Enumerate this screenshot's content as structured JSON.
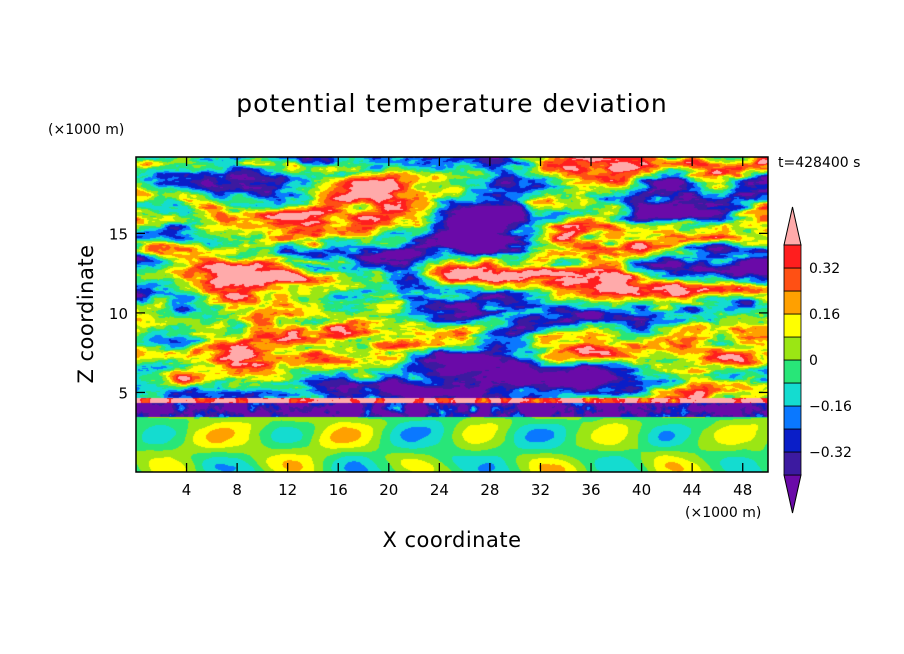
{
  "chart_data": {
    "type": "heatmap",
    "title": "potential temperature deviation",
    "xlabel": "X coordinate",
    "ylabel": "Z coordinate",
    "x_unit": "(×1000 m)",
    "y_unit": "(×1000 m)",
    "time_label": "t=428400 s",
    "xlim": [
      0,
      50
    ],
    "ylim": [
      0,
      19.8
    ],
    "x_ticks": [
      4,
      8,
      12,
      16,
      20,
      24,
      28,
      32,
      36,
      40,
      44,
      48
    ],
    "y_ticks": [
      5,
      10,
      15
    ],
    "colorbar": {
      "levels": [
        -0.4,
        -0.32,
        -0.24,
        -0.16,
        -0.08,
        0,
        0.08,
        0.16,
        0.24,
        0.32,
        0.4
      ],
      "tick_labels": [
        "−0.32",
        "−0.16",
        "0",
        "0.16",
        "0.32"
      ],
      "tick_values": [
        -0.32,
        -0.16,
        0,
        0.16,
        0.32
      ],
      "colors": [
        "#6a0aa8",
        "#3c1aa0",
        "#0a1ec8",
        "#0a78ff",
        "#14dcd0",
        "#28e678",
        "#9be614",
        "#ffff00",
        "#ffa000",
        "#ff5014",
        "#ff1e1e",
        "#ffaaaa"
      ],
      "extend": "both"
    },
    "layers_description": [
      {
        "z_range": [
          0,
          3.5
        ],
        "pattern": "smooth large-scale oscillations, mostly -0.16 to 0.16"
      },
      {
        "z_range": [
          3.5,
          4.5
        ],
        "pattern": "sharp inversion layer with strong positive/negative deviations"
      },
      {
        "z_range": [
          4.5,
          19.8
        ],
        "pattern": "elongated turbulent filaments, alternating strongly positive and negative"
      }
    ]
  }
}
